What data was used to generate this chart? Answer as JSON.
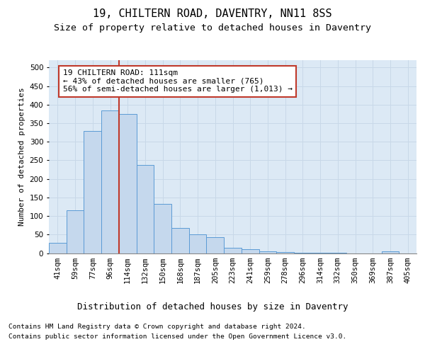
{
  "title1": "19, CHILTERN ROAD, DAVENTRY, NN11 8SS",
  "title2": "Size of property relative to detached houses in Daventry",
  "xlabel": "Distribution of detached houses by size in Daventry",
  "ylabel": "Number of detached properties",
  "categories": [
    "41sqm",
    "59sqm",
    "77sqm",
    "96sqm",
    "114sqm",
    "132sqm",
    "150sqm",
    "168sqm",
    "187sqm",
    "205sqm",
    "223sqm",
    "241sqm",
    "259sqm",
    "278sqm",
    "296sqm",
    "314sqm",
    "332sqm",
    "350sqm",
    "369sqm",
    "387sqm",
    "405sqm"
  ],
  "values": [
    27,
    115,
    330,
    385,
    375,
    237,
    132,
    68,
    50,
    43,
    15,
    10,
    5,
    2,
    1,
    1,
    1,
    0,
    0,
    5,
    0
  ],
  "bar_color": "#c5d8ed",
  "bar_edge_color": "#5b9bd5",
  "vline_x_index": 3.5,
  "vline_color": "#c0392b",
  "annotation_text": "19 CHILTERN ROAD: 111sqm\n← 43% of detached houses are smaller (765)\n56% of semi-detached houses are larger (1,013) →",
  "annotation_box_color": "white",
  "annotation_box_edge_color": "#c0392b",
  "footnote1": "Contains HM Land Registry data © Crown copyright and database right 2024.",
  "footnote2": "Contains public sector information licensed under the Open Government Licence v3.0.",
  "ylim": [
    0,
    520
  ],
  "yticks": [
    0,
    50,
    100,
    150,
    200,
    250,
    300,
    350,
    400,
    450,
    500
  ],
  "grid_color": "#c8d8e8",
  "background_color": "#dce9f5",
  "title1_fontsize": 11,
  "title2_fontsize": 9.5,
  "xlabel_fontsize": 9,
  "ylabel_fontsize": 8,
  "tick_fontsize": 7.5,
  "footnote_fontsize": 6.8,
  "annotation_fontsize": 8
}
